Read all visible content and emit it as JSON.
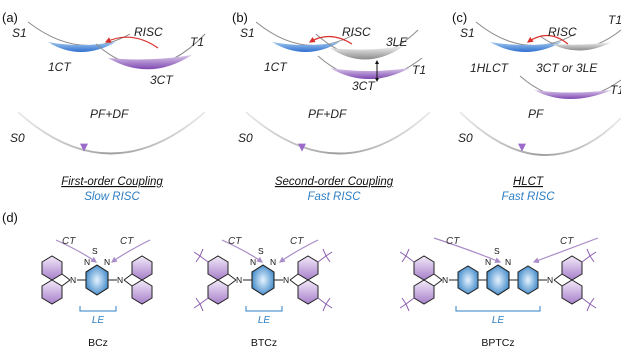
{
  "panels": [
    {
      "label": "(a)",
      "s1": "S1",
      "t1": "T1",
      "s0": "S0",
      "singlet": "1CT",
      "triplet": "3CT",
      "risc": "RISC",
      "pfdf": "PF+DF",
      "coupling": "First-order Coupling",
      "speed": "Slow RISC"
    },
    {
      "label": "(b)",
      "s1": "S1",
      "t1": "T1",
      "s0": "S0",
      "singlet": "1CT",
      "triplet": "3CT",
      "le": "3LE",
      "risc": "RISC",
      "pfdf": "PF+DF",
      "coupling": "Second-order Coupling",
      "speed": "Fast RISC"
    },
    {
      "label": "(c)",
      "s1": "S1",
      "t1": "T1",
      "t1b": "T1",
      "s0": "S0",
      "singlet": "1HLCT",
      "triplet": "3CT or 3LE",
      "risc": "RISC",
      "pf": "PF",
      "coupling": "HLCT",
      "speed": "Fast RISC"
    }
  ],
  "panel_d": {
    "label": "(d)",
    "ct": "CT",
    "le": "LE",
    "atoms": {
      "n": "N",
      "s": "S"
    },
    "molecules": [
      "BCz",
      "BTCz",
      "BPTCz"
    ]
  },
  "colors": {
    "blue": "#2f7fc4",
    "purple": "#8d5fb0",
    "red": "#d9302c",
    "gray": "#9a9a9a"
  }
}
